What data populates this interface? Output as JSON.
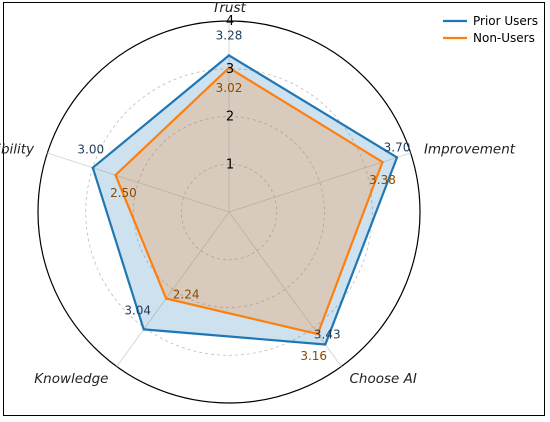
{
  "chart_data": {
    "type": "radar",
    "axes": [
      "Trust",
      "Improvement",
      "Choose AI",
      "Knowledge",
      "Accessibility"
    ],
    "rlim": [
      0,
      4
    ],
    "rticks": [
      "1",
      "2",
      "3",
      "4"
    ],
    "grid": true,
    "legend_position": "top-right",
    "series": [
      {
        "name": "Prior Users",
        "color": "#1f77b4",
        "values": [
          3.28,
          3.7,
          3.43,
          3.04,
          3.0
        ],
        "value_labels": [
          "3.28",
          "3.70",
          "3.43",
          "3.04",
          "3.00"
        ]
      },
      {
        "name": "Non-Users",
        "color": "#ff7f0e",
        "values": [
          3.02,
          3.38,
          3.16,
          2.24,
          2.5
        ],
        "value_labels": [
          "3.02",
          "3.38",
          "3.16",
          "2.24",
          "2.50"
        ]
      }
    ]
  }
}
